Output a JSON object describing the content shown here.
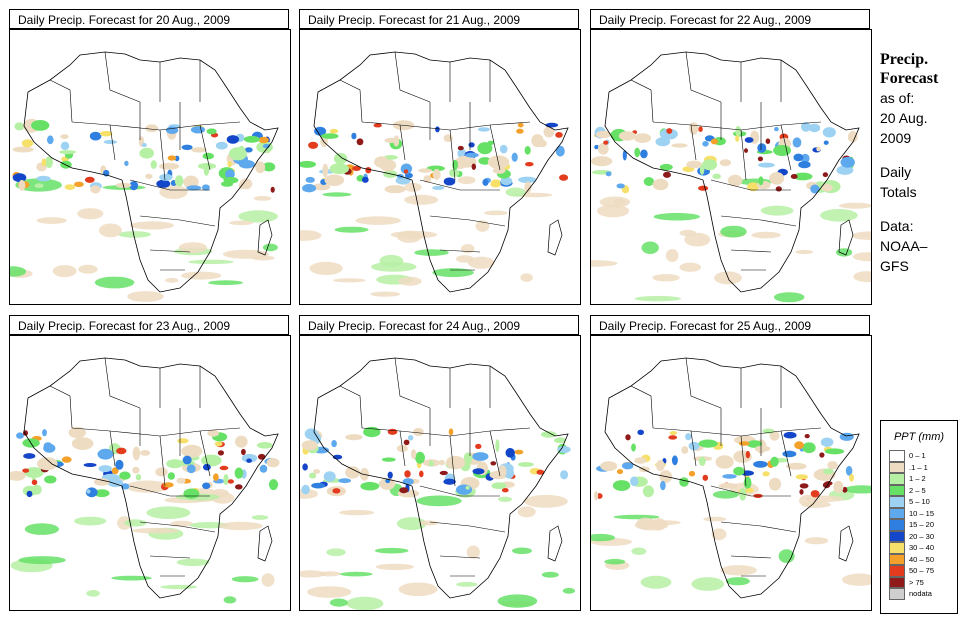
{
  "panels": [
    {
      "title": "Daily Precip. Forecast for  20 Aug., 2009"
    },
    {
      "title": "Daily Precip. Forecast for  21 Aug., 2009"
    },
    {
      "title": "Daily Precip. Forecast for  22 Aug., 2009"
    },
    {
      "title": "Daily Precip. Forecast for  23 Aug., 2009"
    },
    {
      "title": "Daily Precip. Forecast for  24 Aug., 2009"
    },
    {
      "title": "Daily Precip. Forecast for  25 Aug., 2009"
    }
  ],
  "side": {
    "title_line1": "Precip.",
    "title_line2": "Forecast",
    "asof_line1": "as of:",
    "asof_line2": "20 Aug.",
    "asof_line3": "2009",
    "totals_line1": "Daily",
    "totals_line2": "Totals",
    "data_line1": "Data:",
    "data_line2": "NOAA–",
    "data_line3": "GFS"
  },
  "legend": {
    "title": "PPT (mm)",
    "items": [
      {
        "label": "0 – 1",
        "color": "#ffffff"
      },
      {
        "label": ".1 – 1",
        "color": "#eedcc2"
      },
      {
        "label": "1 – 2",
        "color": "#b6f0a4"
      },
      {
        "label": "2 – 5",
        "color": "#66e166"
      },
      {
        "label": "5 – 10",
        "color": "#9ed2f2"
      },
      {
        "label": "10 – 15",
        "color": "#5ea8ee"
      },
      {
        "label": "15 – 20",
        "color": "#2e7fe0"
      },
      {
        "label": "20 – 30",
        "color": "#1346c8"
      },
      {
        "label": "30 – 40",
        "color": "#f6e06a"
      },
      {
        "label": "40 – 50",
        "color": "#f4a12c"
      },
      {
        "label": "50 – 75",
        "color": "#e23b1e"
      },
      {
        "label": "> 75",
        "color": "#8e1a1a"
      },
      {
        "label": "nodata",
        "color": "#cfcfcf"
      }
    ]
  }
}
